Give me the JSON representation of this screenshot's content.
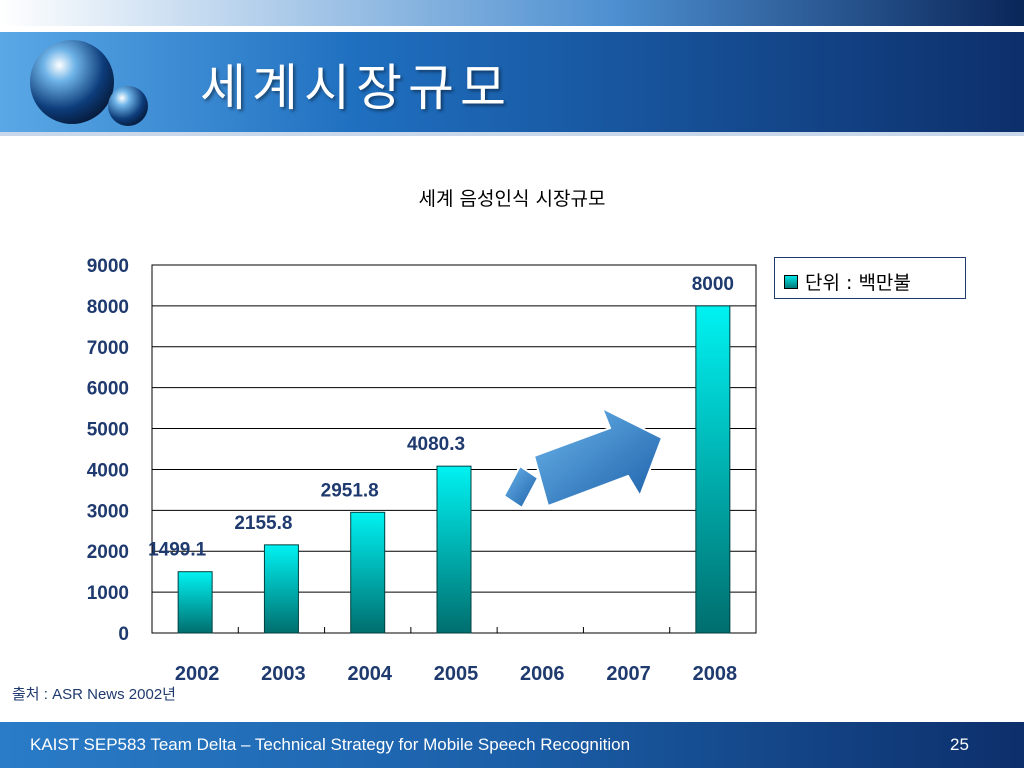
{
  "slide": {
    "title": "세계시장규모",
    "source": "출처 : ASR News 2002년",
    "footer_text": "KAIST SEP583 Team Delta  – Technical Strategy for Mobile Speech Recognition",
    "page_number": "25"
  },
  "colors": {
    "header_blue": "#1a5ea8",
    "header_dark": "#0d2f6b",
    "bar_top": "#00f0f0",
    "bar_bottom": "#007070",
    "arrow_fill": "#2a7fc6",
    "label_color": "#1f3a6e"
  },
  "chart_data": {
    "type": "bar",
    "title": "세계 음성인식 시장규모",
    "categories": [
      "2002",
      "2003",
      "2004",
      "2005",
      "2006",
      "2007",
      "2008"
    ],
    "values": [
      1499.1,
      2155.8,
      2951.8,
      4080.3,
      null,
      null,
      8000
    ],
    "data_labels": [
      "1499.1",
      "2155.8",
      "2951.8",
      "4080.3",
      "",
      "",
      "8000"
    ],
    "ylim": [
      0,
      9000
    ],
    "yticks": [
      "0",
      "1000",
      "2000",
      "3000",
      "4000",
      "5000",
      "6000",
      "7000",
      "8000",
      "9000"
    ],
    "xlabel": "",
    "ylabel": "",
    "grid": true,
    "legend": {
      "label": "단위 : 백만불",
      "placement": "right"
    },
    "annotations": [
      "up-arrow"
    ]
  }
}
